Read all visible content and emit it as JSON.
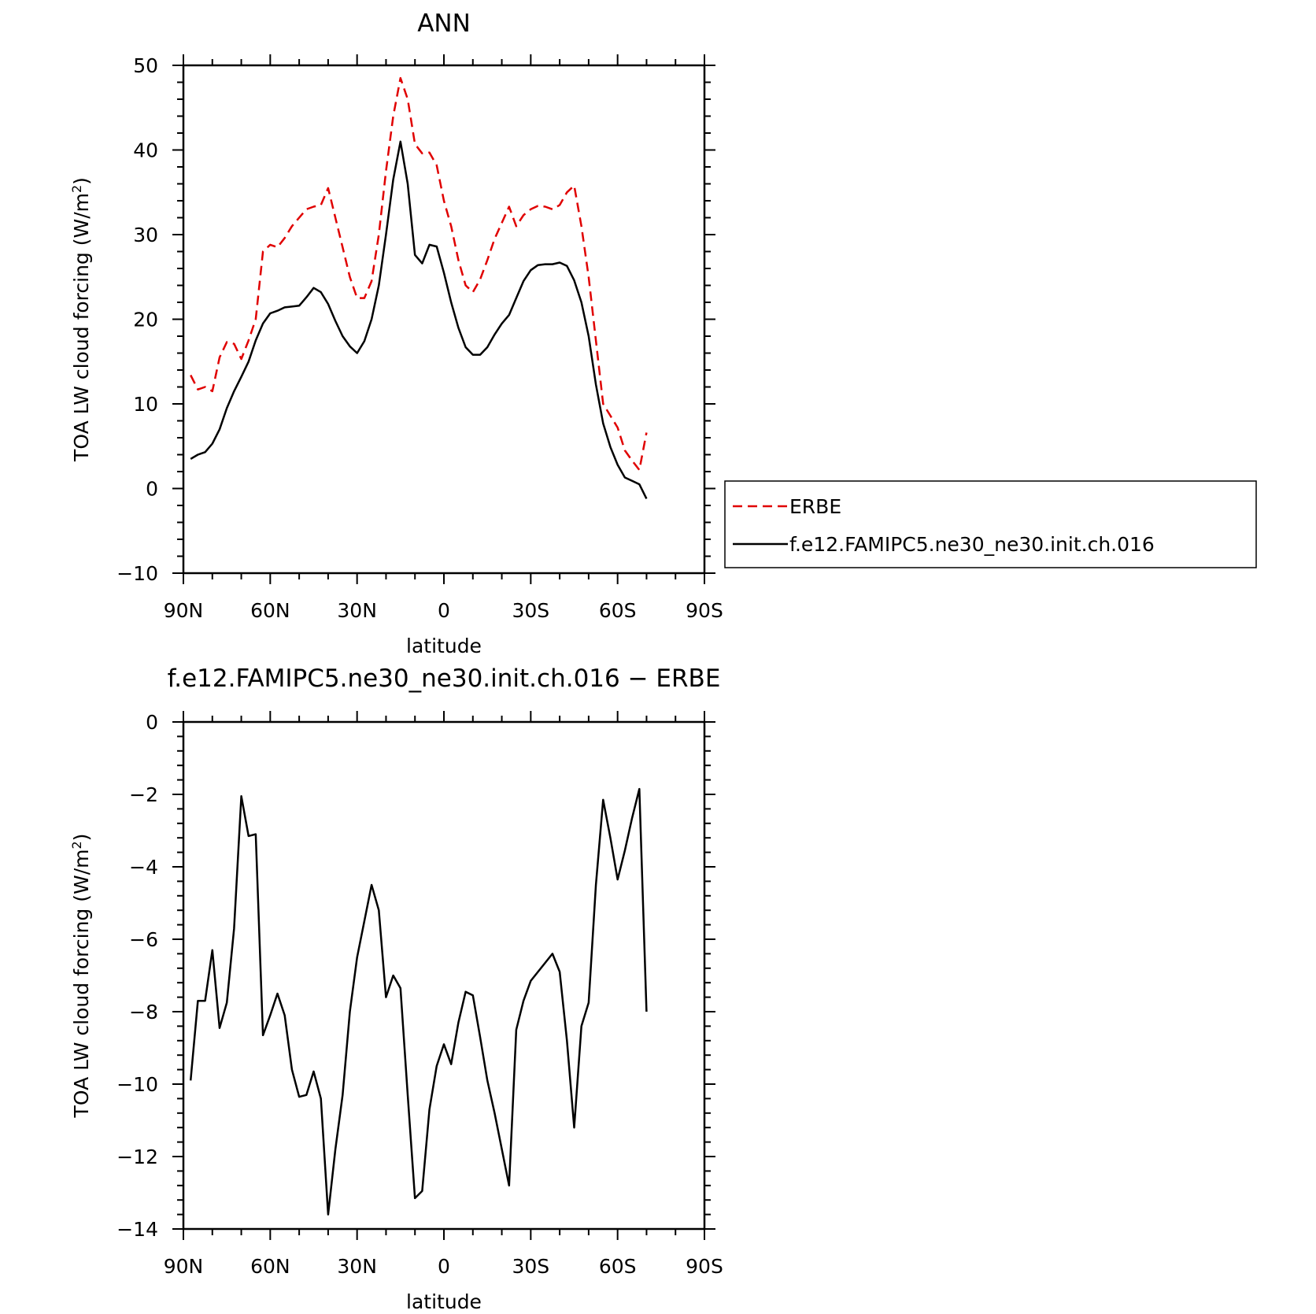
{
  "chart_data": [
    {
      "type": "line",
      "title": "ANN",
      "xlabel": "latitude",
      "ylabel": "TOA LW cloud forcing (W/m",
      "ylabel_sup": "2",
      "ylabel_close": ")",
      "xlim": [
        -90,
        90
      ],
      "ylim": [
        -10,
        50
      ],
      "x_ticks": [
        {
          "value": -90,
          "label": "90N"
        },
        {
          "value": -60,
          "label": "60N"
        },
        {
          "value": -30,
          "label": "30N"
        },
        {
          "value": 0,
          "label": "0"
        },
        {
          "value": 30,
          "label": "30S"
        },
        {
          "value": 60,
          "label": "60S"
        },
        {
          "value": 90,
          "label": "90S"
        }
      ],
      "y_ticks": [
        {
          "value": -10,
          "label": "−10"
        },
        {
          "value": 0,
          "label": "0"
        },
        {
          "value": 10,
          "label": "10"
        },
        {
          "value": 20,
          "label": "20"
        },
        {
          "value": 30,
          "label": "30"
        },
        {
          "value": 40,
          "label": "40"
        },
        {
          "value": 50,
          "label": "50"
        }
      ],
      "legend_position": "right",
      "series": [
        {
          "name": "ERBE",
          "color": "#e00000",
          "dash": "dashed",
          "points": [
            [
              -87.5,
              13.4
            ],
            [
              -85,
              11.7
            ],
            [
              -82.5,
              12.0
            ],
            [
              -80,
              11.5
            ],
            [
              -77.5,
              15.5
            ],
            [
              -75,
              17.3
            ],
            [
              -72.5,
              17.1
            ],
            [
              -70,
              15.3
            ],
            [
              -67.5,
              17.5
            ],
            [
              -65,
              20.0
            ],
            [
              -62.5,
              28.0
            ],
            [
              -60,
              28.8
            ],
            [
              -57.5,
              28.5
            ],
            [
              -55,
              29.6
            ],
            [
              -52.5,
              31.0
            ],
            [
              -50,
              32.0
            ],
            [
              -47.5,
              33.0
            ],
            [
              -45,
              33.3
            ],
            [
              -42.5,
              33.5
            ],
            [
              -40,
              35.5
            ],
            [
              -37.5,
              32.0
            ],
            [
              -35,
              28.5
            ],
            [
              -32.5,
              25.0
            ],
            [
              -30,
              22.5
            ],
            [
              -27.5,
              22.5
            ],
            [
              -25,
              24.5
            ],
            [
              -22.5,
              30.0
            ],
            [
              -20,
              37.5
            ],
            [
              -17.5,
              44.0
            ],
            [
              -15,
              48.5
            ],
            [
              -12.5,
              46.0
            ],
            [
              -10,
              40.7
            ],
            [
              -7.5,
              39.6
            ],
            [
              -5,
              39.7
            ],
            [
              -2.5,
              38.2
            ],
            [
              0,
              34.0
            ],
            [
              2.5,
              31.0
            ],
            [
              5,
              27.0
            ],
            [
              7.5,
              24.0
            ],
            [
              10,
              23.2
            ],
            [
              12.5,
              24.7
            ],
            [
              15,
              27.0
            ],
            [
              17.5,
              29.5
            ],
            [
              20,
              31.4
            ],
            [
              22.5,
              33.3
            ],
            [
              25,
              31.0
            ],
            [
              27.5,
              32.3
            ],
            [
              30,
              33.0
            ],
            [
              32.5,
              33.4
            ],
            [
              35,
              33.3
            ],
            [
              37.5,
              33.0
            ],
            [
              40,
              33.5
            ],
            [
              42.5,
              35.0
            ],
            [
              45,
              35.8
            ],
            [
              47.5,
              31.0
            ],
            [
              50,
              25.0
            ],
            [
              52.5,
              17.5
            ],
            [
              55,
              10.0
            ],
            [
              57.5,
              8.6
            ],
            [
              60,
              7.2
            ],
            [
              62.5,
              4.5
            ],
            [
              65,
              3.3
            ],
            [
              67.5,
              2.2
            ],
            [
              70,
              6.6
            ]
          ]
        },
        {
          "name": "f.e12.FAMIPC5.ne30_ne30.init.ch.016",
          "color": "#000000",
          "dash": "solid",
          "points": [
            [
              -87.5,
              3.5
            ],
            [
              -85,
              4.0
            ],
            [
              -82.5,
              4.3
            ],
            [
              -80,
              5.3
            ],
            [
              -77.5,
              7.0
            ],
            [
              -75,
              9.5
            ],
            [
              -72.5,
              11.5
            ],
            [
              -70,
              13.2
            ],
            [
              -67.5,
              15.0
            ],
            [
              -65,
              17.5
            ],
            [
              -62.5,
              19.5
            ],
            [
              -60,
              20.7
            ],
            [
              -57.5,
              21.0
            ],
            [
              -55,
              21.4
            ],
            [
              -52.5,
              21.5
            ],
            [
              -50,
              21.6
            ],
            [
              -47.5,
              22.6
            ],
            [
              -45,
              23.7
            ],
            [
              -42.5,
              23.2
            ],
            [
              -40,
              21.8
            ],
            [
              -37.5,
              19.8
            ],
            [
              -35,
              18.0
            ],
            [
              -32.5,
              16.8
            ],
            [
              -30,
              16.0
            ],
            [
              -27.5,
              17.4
            ],
            [
              -25,
              20.0
            ],
            [
              -22.5,
              24.0
            ],
            [
              -20,
              30.0
            ],
            [
              -17.5,
              36.5
            ],
            [
              -15,
              41.0
            ],
            [
              -12.5,
              36.0
            ],
            [
              -10,
              27.6
            ],
            [
              -7.5,
              26.6
            ],
            [
              -5,
              28.8
            ],
            [
              -2.5,
              28.6
            ],
            [
              0,
              25.5
            ],
            [
              2.5,
              22.0
            ],
            [
              5,
              19.0
            ],
            [
              7.5,
              16.7
            ],
            [
              10,
              15.8
            ],
            [
              12.5,
              15.8
            ],
            [
              15,
              16.7
            ],
            [
              17.5,
              18.2
            ],
            [
              20,
              19.5
            ],
            [
              22.5,
              20.5
            ],
            [
              25,
              22.5
            ],
            [
              27.5,
              24.5
            ],
            [
              30,
              25.8
            ],
            [
              32.5,
              26.4
            ],
            [
              35,
              26.5
            ],
            [
              37.5,
              26.5
            ],
            [
              40,
              26.7
            ],
            [
              42.5,
              26.3
            ],
            [
              45,
              24.6
            ],
            [
              47.5,
              22.0
            ],
            [
              50,
              18.0
            ],
            [
              52.5,
              12.3
            ],
            [
              55,
              7.7
            ],
            [
              57.5,
              4.9
            ],
            [
              60,
              2.8
            ],
            [
              62.5,
              1.3
            ],
            [
              65,
              0.9
            ],
            [
              67.5,
              0.5
            ],
            [
              70,
              -1.2
            ]
          ]
        }
      ]
    },
    {
      "type": "line",
      "title": "f.e12.FAMIPC5.ne30_ne30.init.ch.016 − ERBE",
      "xlabel": "latitude",
      "ylabel": "TOA LW cloud forcing (W/m",
      "ylabel_sup": "2",
      "ylabel_close": ")",
      "xlim": [
        -90,
        90
      ],
      "ylim": [
        -14,
        0
      ],
      "x_ticks": [
        {
          "value": -90,
          "label": "90N"
        },
        {
          "value": -60,
          "label": "60N"
        },
        {
          "value": -30,
          "label": "30N"
        },
        {
          "value": 0,
          "label": "0"
        },
        {
          "value": 30,
          "label": "30S"
        },
        {
          "value": 60,
          "label": "60S"
        },
        {
          "value": 90,
          "label": "90S"
        }
      ],
      "y_ticks": [
        {
          "value": -14,
          "label": "−14"
        },
        {
          "value": -12,
          "label": "−12"
        },
        {
          "value": -10,
          "label": "−10"
        },
        {
          "value": -8,
          "label": "−8"
        },
        {
          "value": -6,
          "label": "−6"
        },
        {
          "value": -4,
          "label": "−4"
        },
        {
          "value": -2,
          "label": "−2"
        },
        {
          "value": 0,
          "label": "0"
        }
      ],
      "series": [
        {
          "name": "",
          "color": "#000000",
          "dash": "solid",
          "points": [
            [
              -87.5,
              -9.9
            ],
            [
              -85,
              -7.7
            ],
            [
              -82.5,
              -7.7
            ],
            [
              -80,
              -6.3
            ],
            [
              -77.5,
              -8.45
            ],
            [
              -75,
              -7.75
            ],
            [
              -72.5,
              -5.7
            ],
            [
              -70,
              -2.05
            ],
            [
              -67.5,
              -3.15
            ],
            [
              -65,
              -3.1
            ],
            [
              -62.5,
              -8.65
            ],
            [
              -60,
              -8.1
            ],
            [
              -57.5,
              -7.5
            ],
            [
              -55,
              -8.1
            ],
            [
              -52.5,
              -9.6
            ],
            [
              -50,
              -10.35
            ],
            [
              -47.5,
              -10.3
            ],
            [
              -45,
              -9.65
            ],
            [
              -42.5,
              -10.4
            ],
            [
              -40,
              -13.6
            ],
            [
              -37.5,
              -11.8
            ],
            [
              -35,
              -10.3
            ],
            [
              -32.5,
              -8.0
            ],
            [
              -30,
              -6.5
            ],
            [
              -27.5,
              -5.5
            ],
            [
              -25,
              -4.5
            ],
            [
              -22.5,
              -5.2
            ],
            [
              -20,
              -7.6
            ],
            [
              -17.5,
              -7.0
            ],
            [
              -15,
              -7.35
            ],
            [
              -12.5,
              -10.3
            ],
            [
              -10,
              -13.15
            ],
            [
              -7.5,
              -12.95
            ],
            [
              -5,
              -10.7
            ],
            [
              -2.5,
              -9.5
            ],
            [
              0,
              -8.9
            ],
            [
              2.5,
              -9.45
            ],
            [
              5,
              -8.3
            ],
            [
              7.5,
              -7.45
            ],
            [
              10,
              -7.55
            ],
            [
              12.5,
              -8.7
            ],
            [
              15,
              -9.9
            ],
            [
              17.5,
              -10.8
            ],
            [
              20,
              -11.8
            ],
            [
              22.5,
              -12.8
            ],
            [
              25,
              -8.5
            ],
            [
              27.5,
              -7.7
            ],
            [
              30,
              -7.15
            ],
            [
              32.5,
              -6.9
            ],
            [
              35,
              -6.65
            ],
            [
              37.5,
              -6.4
            ],
            [
              40,
              -6.9
            ],
            [
              42.5,
              -8.8
            ],
            [
              45,
              -11.2
            ],
            [
              47.5,
              -8.4
            ],
            [
              50,
              -7.75
            ],
            [
              52.5,
              -4.5
            ],
            [
              55,
              -2.15
            ],
            [
              57.5,
              -3.2
            ],
            [
              60,
              -4.35
            ],
            [
              62.5,
              -3.55
            ],
            [
              65,
              -2.65
            ],
            [
              67.5,
              -1.85
            ],
            [
              70,
              -8.0
            ]
          ]
        }
      ]
    }
  ]
}
